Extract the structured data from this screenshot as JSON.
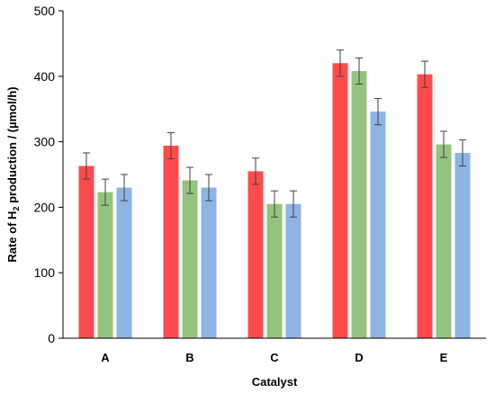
{
  "chart_data": {
    "type": "bar",
    "title": "",
    "xlabel": "Catalyst",
    "ylabel": {
      "prefix": "Rate of H",
      "subscript": "2",
      "suffix": " production / (µmol/h)"
    },
    "ylim": [
      0,
      500
    ],
    "yticks": [
      "0",
      "100",
      "200",
      "300",
      "400",
      "500"
    ],
    "grid": false,
    "legend": "none",
    "categories": [
      "A",
      "B",
      "C",
      "D",
      "E"
    ],
    "series": [
      {
        "color": "#ff4b4b",
        "values": [
          263,
          294,
          255,
          420,
          403
        ],
        "errors": [
          20,
          20,
          20,
          20,
          20
        ]
      },
      {
        "color": "#93c47d",
        "values": [
          223,
          241,
          205,
          408,
          296
        ],
        "errors": [
          20,
          20,
          20,
          20,
          20
        ]
      },
      {
        "color": "#8db4e2",
        "values": [
          230,
          230,
          205,
          346,
          283
        ],
        "errors": [
          20,
          20,
          20,
          20,
          20
        ]
      }
    ]
  }
}
